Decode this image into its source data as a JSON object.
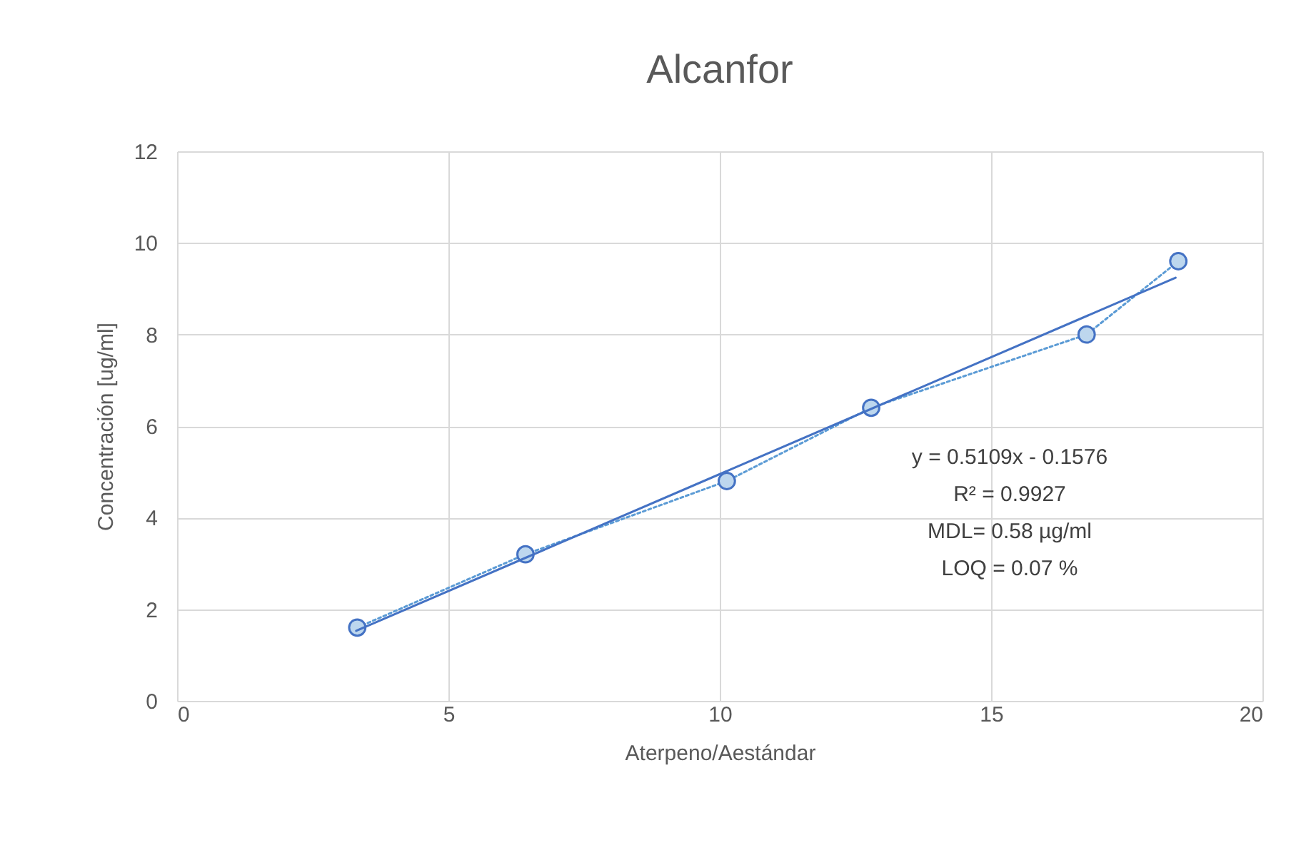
{
  "chart_data": {
    "type": "line",
    "title": "Alcanfor",
    "xlabel": "Aterpeno/Aestándar",
    "ylabel": "Concentración [ug/ml]",
    "series": [
      {
        "type": "line",
        "color": "#5b9bd5",
        "marker": "circle",
        "line_style": "dotted",
        "x": [
          3.32,
          6.42,
          10.13,
          12.79,
          16.76,
          18.45
        ],
        "values": [
          1.6,
          3.2,
          4.8,
          6.4,
          8.0,
          9.6
        ]
      },
      {
        "type": "line",
        "color": "#4472c4",
        "marker": "none",
        "line_style": "solid",
        "x": [
          3.3,
          18.4
        ],
        "values": [
          1.53,
          9.24
        ]
      }
    ],
    "xlim": [
      0,
      20
    ],
    "xticks": [
      0,
      5,
      10,
      15,
      20
    ],
    "ylim": [
      0,
      12
    ],
    "yticks": [
      0,
      2,
      4,
      6,
      8,
      10,
      12
    ],
    "grid": true,
    "annotations": [
      "y = 0.5109x - 0.1576",
      "R² = 0.9927",
      "MDL= 0.58 µg/ml",
      "LOQ = 0.07 %"
    ]
  }
}
